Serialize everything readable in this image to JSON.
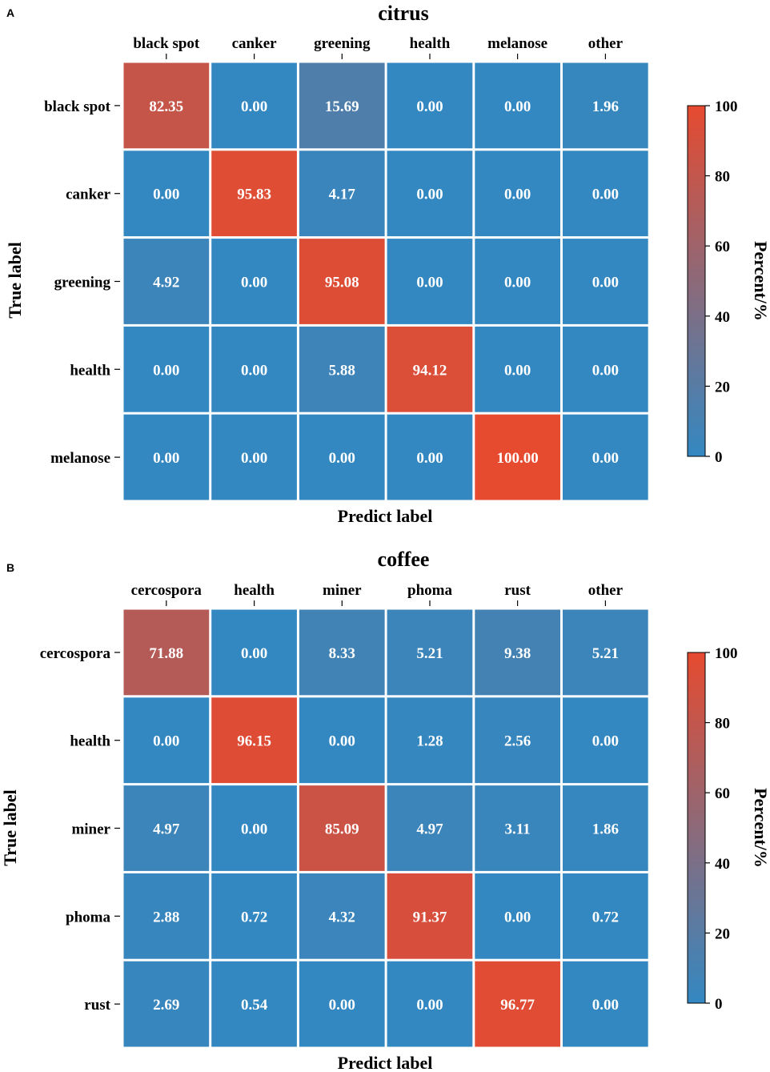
{
  "colors": {
    "low": "#3388c2",
    "high": "#e64a2f",
    "cell_border": "#ffffff"
  },
  "chart_data": [
    {
      "type": "heatmap",
      "panel": "A",
      "title": "citrus",
      "xlabel": "Predict label",
      "ylabel": "True label",
      "x_categories": [
        "black spot",
        "canker",
        "greening",
        "health",
        "melanose",
        "other"
      ],
      "y_categories": [
        "black spot",
        "canker",
        "greening",
        "health",
        "melanose"
      ],
      "values": [
        [
          82.35,
          0.0,
          15.69,
          0.0,
          0.0,
          1.96
        ],
        [
          0.0,
          95.83,
          4.17,
          0.0,
          0.0,
          0.0
        ],
        [
          4.92,
          0.0,
          95.08,
          0.0,
          0.0,
          0.0
        ],
        [
          0.0,
          0.0,
          5.88,
          94.12,
          0.0,
          0.0
        ],
        [
          0.0,
          0.0,
          0.0,
          0.0,
          100.0,
          0.0
        ]
      ],
      "value_labels": [
        [
          "82.35",
          "0.00",
          "15.69",
          "0.00",
          "0.00",
          "1.96"
        ],
        [
          "0.00",
          "95.83",
          "4.17",
          "0.00",
          "0.00",
          "0.00"
        ],
        [
          "4.92",
          "0.00",
          "95.08",
          "0.00",
          "0.00",
          "0.00"
        ],
        [
          "0.00",
          "0.00",
          "5.88",
          "94.12",
          "0.00",
          "0.00"
        ],
        [
          "0.00",
          "0.00",
          "0.00",
          "0.00",
          "100.00",
          "0.00"
        ]
      ],
      "colorbar": {
        "label": "Percent/%",
        "range": [
          0,
          100
        ],
        "ticks": [
          "0",
          "20",
          "40",
          "60",
          "80",
          "100"
        ]
      }
    },
    {
      "type": "heatmap",
      "panel": "B",
      "title": "coffee",
      "xlabel": "Predict label",
      "ylabel": "True label",
      "x_categories": [
        "cercospora",
        "health",
        "miner",
        "phoma",
        "rust",
        "other"
      ],
      "y_categories": [
        "cercospora",
        "health",
        "miner",
        "phoma",
        "rust"
      ],
      "values": [
        [
          71.88,
          0.0,
          8.33,
          5.21,
          9.38,
          5.21
        ],
        [
          0.0,
          96.15,
          0.0,
          1.28,
          2.56,
          0.0
        ],
        [
          4.97,
          0.0,
          85.09,
          4.97,
          3.11,
          1.86
        ],
        [
          2.88,
          0.72,
          4.32,
          91.37,
          0.0,
          0.72
        ],
        [
          2.69,
          0.54,
          0.0,
          0.0,
          96.77,
          0.0
        ]
      ],
      "value_labels": [
        [
          "71.88",
          "0.00",
          "8.33",
          "5.21",
          "9.38",
          "5.21"
        ],
        [
          "0.00",
          "96.15",
          "0.00",
          "1.28",
          "2.56",
          "0.00"
        ],
        [
          "4.97",
          "0.00",
          "85.09",
          "4.97",
          "3.11",
          "1.86"
        ],
        [
          "2.88",
          "0.72",
          "4.32",
          "91.37",
          "0.00",
          "0.72"
        ],
        [
          "2.69",
          "0.54",
          "0.00",
          "0.00",
          "96.77",
          "0.00"
        ]
      ],
      "colorbar": {
        "label": "Percent/%",
        "range": [
          0,
          100
        ],
        "ticks": [
          "0",
          "20",
          "40",
          "60",
          "80",
          "100"
        ]
      }
    }
  ]
}
